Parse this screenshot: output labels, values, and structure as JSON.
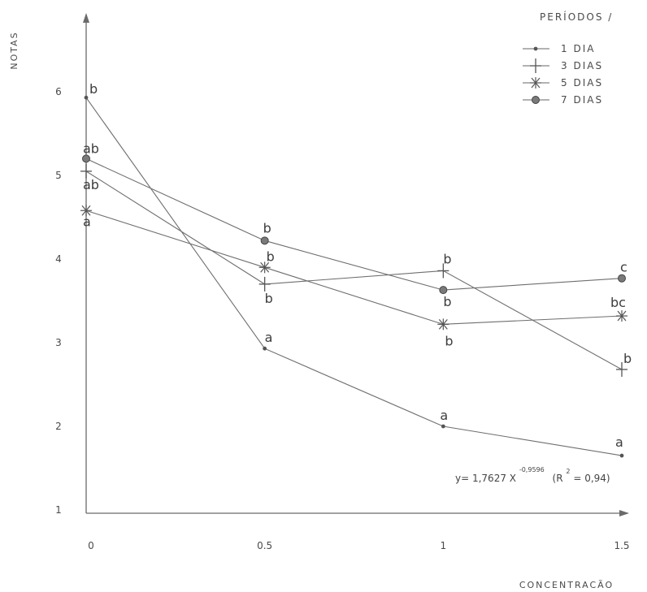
{
  "chart_data": {
    "type": "line",
    "xlabel": "CONCENTRACÃO",
    "ylabel": "NOTAS",
    "x": [
      0,
      0.5,
      1,
      1.5
    ],
    "x_tick_labels": [
      "0",
      "0.5",
      "1",
      "1.5"
    ],
    "y_ticks": [
      1,
      2,
      3,
      4,
      5,
      6
    ],
    "y_tick_labels": [
      "1",
      "2",
      "3",
      "4",
      "5",
      "6"
    ],
    "xlim": [
      0,
      1.5
    ],
    "ylim": [
      1,
      6.9
    ],
    "grid": false,
    "legend": {
      "title": "PERÍODOS /",
      "position": "top-right",
      "entries": [
        "1   DIA",
        "3   DIAS",
        "5   DIAS",
        "7   DIAS"
      ]
    },
    "series": [
      {
        "name": "1 DIA",
        "marker": "dot",
        "values": [
          5.93,
          2.93,
          2.0,
          1.65
        ],
        "labels": [
          "b",
          "a",
          "a",
          "a"
        ]
      },
      {
        "name": "3 DIAS",
        "marker": "plus",
        "values": [
          5.05,
          3.7,
          3.86,
          2.68
        ],
        "labels": [
          "ab",
          "b",
          "b",
          "b"
        ]
      },
      {
        "name": "5 DIAS",
        "marker": "star",
        "values": [
          4.58,
          3.9,
          3.22,
          3.32
        ],
        "labels": [
          "a",
          "b",
          "b",
          "bc"
        ]
      },
      {
        "name": "7 DIAS",
        "marker": "circle",
        "values": [
          5.2,
          4.22,
          3.63,
          3.77
        ],
        "labels": [
          "ab",
          "b",
          "b",
          "c"
        ]
      }
    ],
    "equation": {
      "base": "y= 1,7627 X",
      "exponent": "-0,9596",
      "r2_prefix": "(R",
      "r2_sup": "2",
      "r2_value": "= 0,94)"
    }
  }
}
